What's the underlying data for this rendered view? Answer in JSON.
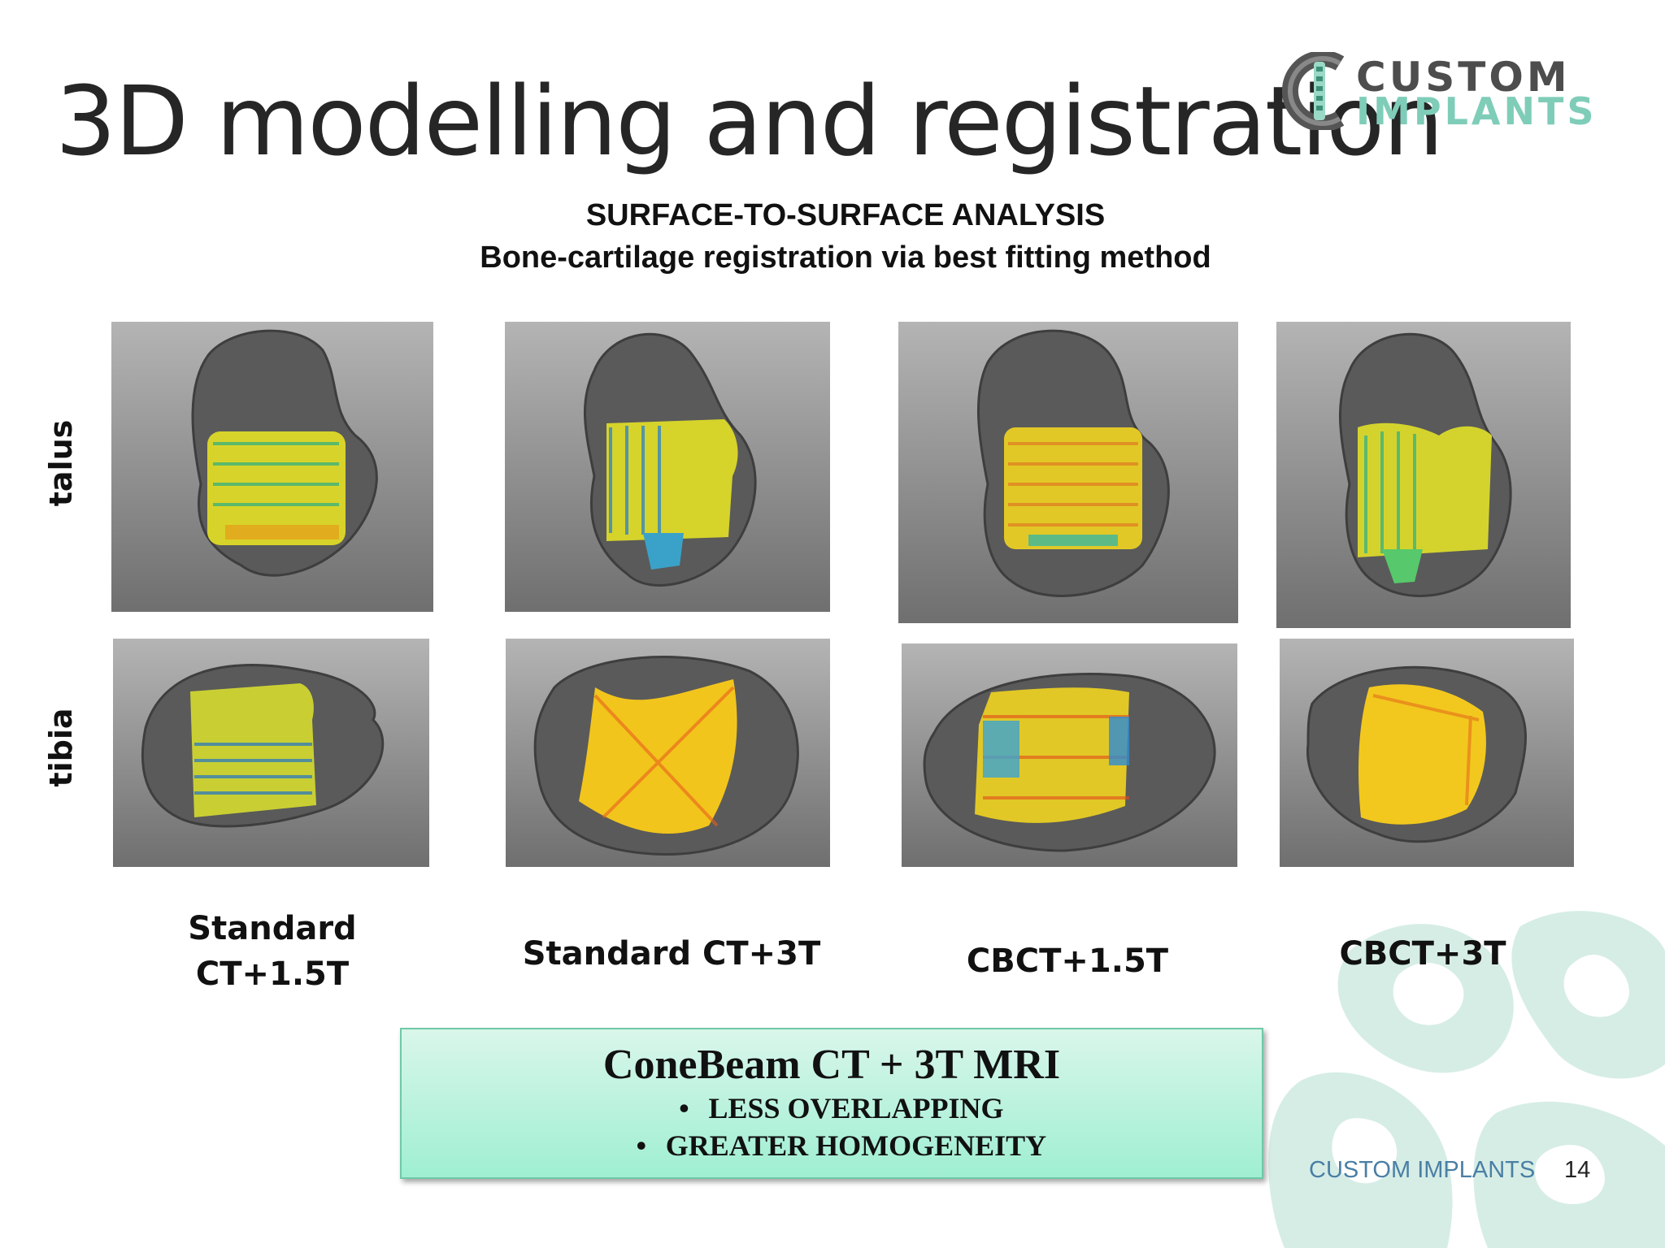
{
  "slide": {
    "title": "3D modelling and registration",
    "logo": {
      "line1": "CUSTOM",
      "line2": "IMPLANTS"
    },
    "subtitle_line1": "SURFACE-TO-SURFACE ANALYSIS",
    "subtitle_line2": "Bone-cartilage registration via best fitting method",
    "row_labels": [
      "talus",
      "tibia"
    ],
    "column_labels": [
      {
        "line1": "Standard",
        "line2": "CT+1.5T"
      },
      {
        "line1": "Standard CT+3T",
        "line2": ""
      },
      {
        "line1": "CBCT+1.5T",
        "line2": ""
      },
      {
        "line1": "CBCT+3T",
        "line2": ""
      }
    ],
    "summary": {
      "title": "ConeBeam CT + 3T MRI",
      "bullets": [
        "LESS OVERLAPPING",
        "GREATER HOMOGENEITY"
      ],
      "bullet_symbol": "•"
    },
    "footer": {
      "text": "CUSTOM IMPLANTS",
      "page_number": "14"
    },
    "colors": {
      "accent_mint": "#9fefd2",
      "logo_gray": "#4d4d4d",
      "logo_green": "#7fcdb8",
      "footer_blue": "#4a7fa5"
    }
  }
}
